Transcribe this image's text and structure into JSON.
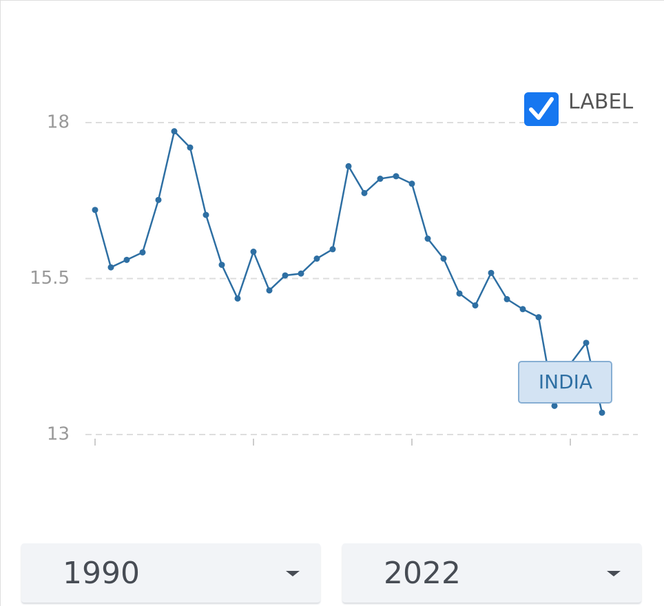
{
  "chart_data": {
    "type": "line",
    "x": [
      1990,
      1991,
      1992,
      1993,
      1994,
      1995,
      1996,
      1997,
      1998,
      1999,
      2000,
      2001,
      2002,
      2003,
      2004,
      2005,
      2006,
      2007,
      2008,
      2009,
      2010,
      2011,
      2012,
      2013,
      2014,
      2015,
      2016,
      2017,
      2018,
      2019,
      2020,
      2021,
      2022
    ],
    "series": [
      {
        "name": "INDIA",
        "color": "#2e6fa3",
        "values": [
          16.6,
          15.68,
          15.8,
          15.92,
          16.76,
          17.86,
          17.6,
          16.52,
          15.72,
          15.18,
          15.93,
          15.31,
          15.55,
          15.58,
          15.82,
          15.97,
          17.3,
          16.87,
          17.1,
          17.14,
          17.02,
          16.14,
          15.82,
          15.26,
          15.07,
          15.59,
          15.17,
          15.01,
          14.88,
          13.46,
          14.13,
          14.47,
          13.35
        ]
      }
    ],
    "xlim": [
      1990,
      2022
    ],
    "xticks": [
      1990,
      2000,
      2010,
      2020
    ],
    "ylim": [
      13,
      18
    ],
    "yticks": [
      13,
      15.5,
      18
    ],
    "grid": true,
    "label_toggle": {
      "text": "LABEL",
      "checked": true
    }
  },
  "controls": {
    "start_year": 1990,
    "end_year": 2022
  }
}
